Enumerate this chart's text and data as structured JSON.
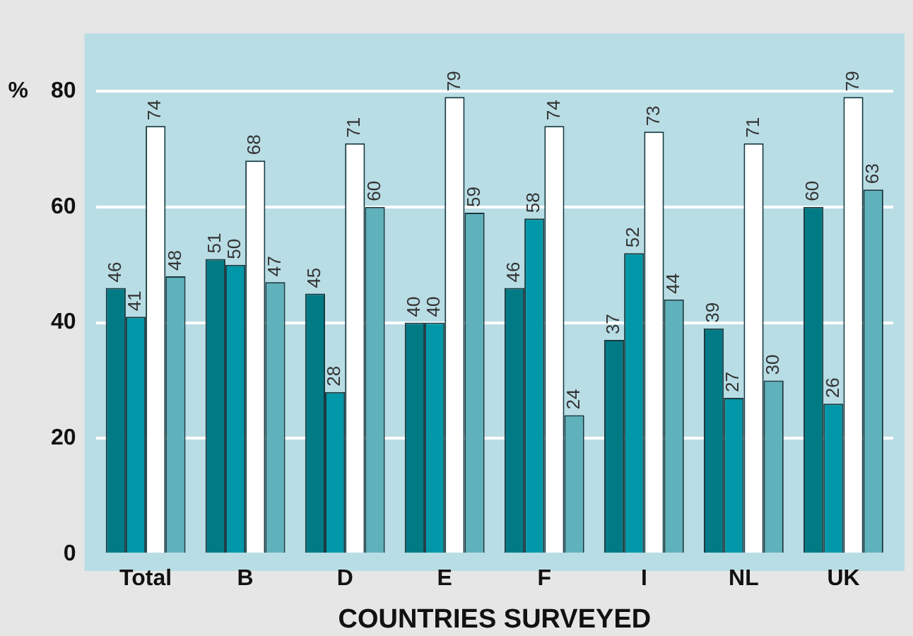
{
  "chart_data": {
    "type": "bar",
    "xlabel": "COUNTRIES SURVEYED",
    "ylabel": "%",
    "categories": [
      "Total",
      "B",
      "D",
      "E",
      "F",
      "I",
      "NL",
      "UK"
    ],
    "series": [
      {
        "color": "#007b86",
        "values": [
          46,
          51,
          45,
          40,
          46,
          37,
          39,
          60
        ]
      },
      {
        "color": "#0098a8",
        "values": [
          41,
          50,
          28,
          40,
          58,
          52,
          27,
          26
        ]
      },
      {
        "color": "#ffffff",
        "values": [
          74,
          68,
          71,
          79,
          74,
          73,
          71,
          79
        ]
      },
      {
        "color": "#5fb1bb",
        "values": [
          48,
          47,
          60,
          59,
          24,
          44,
          30,
          63
        ]
      }
    ],
    "ylim": [
      0,
      90
    ],
    "yticks": [
      0,
      20,
      40,
      60,
      80
    ],
    "grid": "y",
    "legend": false,
    "data_labels": true
  }
}
